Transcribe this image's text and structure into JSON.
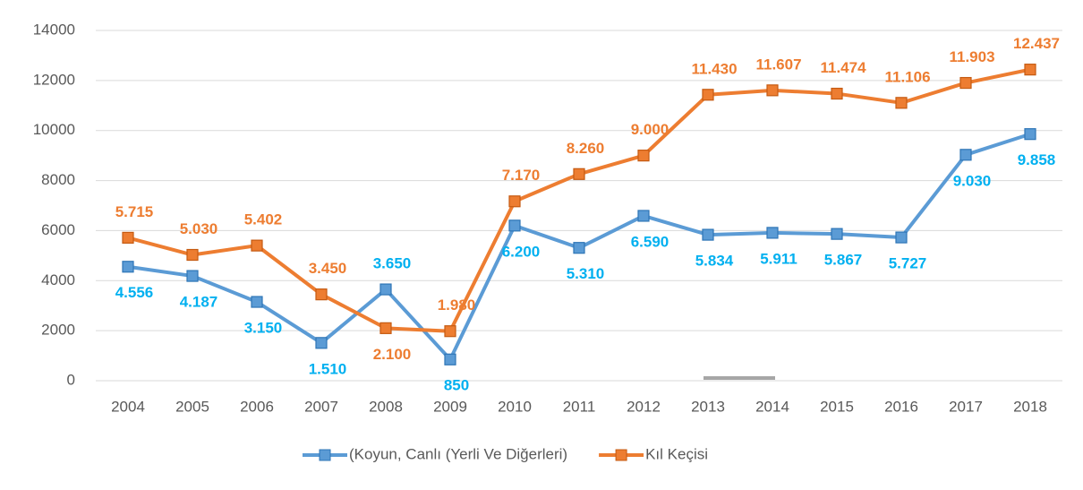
{
  "chart_data": {
    "type": "line",
    "categories": [
      "2004",
      "2005",
      "2006",
      "2007",
      "2008",
      "2009",
      "2010",
      "2011",
      "2012",
      "2013",
      "2014",
      "2015",
      "2016",
      "2017",
      "2018"
    ],
    "series": [
      {
        "name": "(Koyun, Canlı (Yerli Ve Diğerleri)",
        "color": "#5b9bd5",
        "label_color": "#00b0f0",
        "values": [
          4556,
          4187,
          3150,
          1510,
          3650,
          850,
          6200,
          5310,
          6590,
          5834,
          5911,
          5867,
          5727,
          9030,
          9858
        ],
        "value_labels": [
          "4.556",
          "4.187",
          "3.150",
          "1.510",
          "3.650",
          "850",
          "6.200",
          "5.310",
          "6.590",
          "5.834",
          "5.911",
          "5.867",
          "5.727",
          "9.030",
          "9.858"
        ]
      },
      {
        "name": "Kıl Keçisi",
        "color": "#ed7d31",
        "label_color": "#ed7d31",
        "values": [
          5715,
          5030,
          5402,
          3450,
          2100,
          1980,
          7170,
          8260,
          9000,
          11430,
          11607,
          11474,
          11106,
          11903,
          12437
        ],
        "value_labels": [
          "5.715",
          "5.030",
          "5.402",
          "3.450",
          "2.100",
          "1.980",
          "7.170",
          "8.260",
          "9.000",
          "11.430",
          "11.607",
          "11.474",
          "11.106",
          "11.903",
          "12.437"
        ]
      }
    ],
    "ylim": [
      0,
      14000
    ],
    "yticks": [
      0,
      2000,
      4000,
      6000,
      8000,
      10000,
      12000,
      14000
    ],
    "grid": true,
    "legend": "bottom"
  }
}
